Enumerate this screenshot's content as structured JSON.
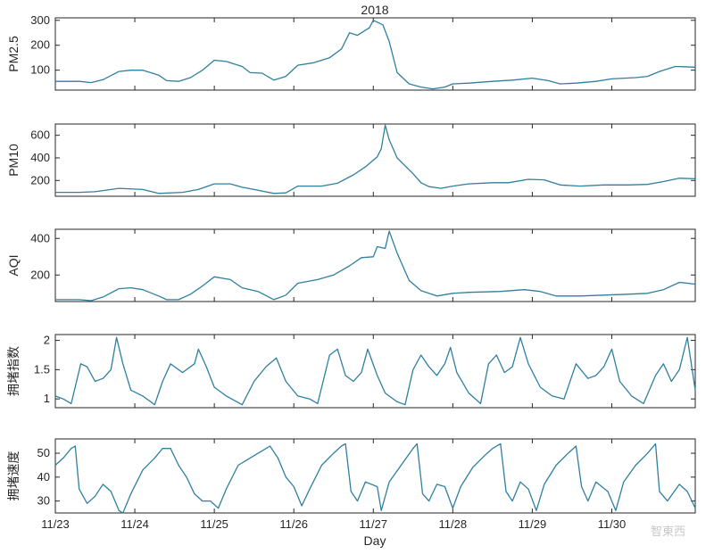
{
  "title": "2018",
  "xlabel": "Day",
  "watermark": "智東西",
  "colors": {
    "line": "#2f7f9f",
    "axis": "#262626"
  },
  "chart_data": {
    "type": "line",
    "x_unit": "day",
    "xlim": [
      0,
      8.05
    ],
    "x_ticks": [
      {
        "value": 0,
        "label": "11/23"
      },
      {
        "value": 1,
        "label": "11/24"
      },
      {
        "value": 2,
        "label": "11/25"
      },
      {
        "value": 3,
        "label": "11/26"
      },
      {
        "value": 4,
        "label": "11/27"
      },
      {
        "value": 5,
        "label": "11/28"
      },
      {
        "value": 6,
        "label": "11/29"
      },
      {
        "value": 7,
        "label": "11/30"
      }
    ],
    "panels": [
      {
        "ylabel": "PM2.5",
        "ylim": [
          20,
          310
        ],
        "yticks": [
          {
            "value": 100,
            "label": "100"
          },
          {
            "value": 200,
            "label": "200"
          },
          {
            "value": 300,
            "label": "300"
          }
        ],
        "points": [
          [
            0,
            55
          ],
          [
            0.3,
            55
          ],
          [
            0.45,
            50
          ],
          [
            0.6,
            62
          ],
          [
            0.8,
            95
          ],
          [
            0.95,
            100
          ],
          [
            1.1,
            100
          ],
          [
            1.3,
            80
          ],
          [
            1.4,
            58
          ],
          [
            1.55,
            55
          ],
          [
            1.7,
            70
          ],
          [
            1.85,
            100
          ],
          [
            2.0,
            140
          ],
          [
            2.15,
            135
          ],
          [
            2.35,
            115
          ],
          [
            2.45,
            90
          ],
          [
            2.6,
            88
          ],
          [
            2.75,
            60
          ],
          [
            2.9,
            75
          ],
          [
            3.05,
            120
          ],
          [
            3.25,
            130
          ],
          [
            3.45,
            150
          ],
          [
            3.6,
            185
          ],
          [
            3.7,
            250
          ],
          [
            3.8,
            240
          ],
          [
            3.95,
            270
          ],
          [
            4.0,
            300
          ],
          [
            4.12,
            282
          ],
          [
            4.2,
            215
          ],
          [
            4.3,
            90
          ],
          [
            4.45,
            45
          ],
          [
            4.6,
            32
          ],
          [
            4.75,
            25
          ],
          [
            4.9,
            32
          ],
          [
            5.0,
            45
          ],
          [
            5.2,
            48
          ],
          [
            5.5,
            55
          ],
          [
            5.75,
            60
          ],
          [
            6.0,
            68
          ],
          [
            6.2,
            58
          ],
          [
            6.35,
            45
          ],
          [
            6.55,
            48
          ],
          [
            6.8,
            55
          ],
          [
            7.0,
            65
          ],
          [
            7.3,
            70
          ],
          [
            7.45,
            75
          ],
          [
            7.6,
            95
          ],
          [
            7.8,
            115
          ],
          [
            8.05,
            112
          ]
        ]
      },
      {
        "ylabel": "PM10",
        "ylim": [
          60,
          700
        ],
        "yticks": [
          {
            "value": 200,
            "label": "200"
          },
          {
            "value": 400,
            "label": "400"
          },
          {
            "value": 600,
            "label": "600"
          }
        ],
        "points": [
          [
            0,
            95
          ],
          [
            0.3,
            95
          ],
          [
            0.5,
            100
          ],
          [
            0.8,
            130
          ],
          [
            1.1,
            120
          ],
          [
            1.3,
            85
          ],
          [
            1.6,
            95
          ],
          [
            1.8,
            120
          ],
          [
            2.0,
            170
          ],
          [
            2.2,
            170
          ],
          [
            2.35,
            140
          ],
          [
            2.5,
            120
          ],
          [
            2.75,
            85
          ],
          [
            2.9,
            90
          ],
          [
            3.05,
            150
          ],
          [
            3.35,
            150
          ],
          [
            3.55,
            175
          ],
          [
            3.75,
            250
          ],
          [
            3.9,
            320
          ],
          [
            4.0,
            380
          ],
          [
            4.05,
            410
          ],
          [
            4.1,
            480
          ],
          [
            4.15,
            690
          ],
          [
            4.2,
            560
          ],
          [
            4.3,
            400
          ],
          [
            4.5,
            260
          ],
          [
            4.6,
            180
          ],
          [
            4.7,
            145
          ],
          [
            4.85,
            130
          ],
          [
            5.0,
            150
          ],
          [
            5.2,
            170
          ],
          [
            5.5,
            180
          ],
          [
            5.7,
            180
          ],
          [
            5.95,
            210
          ],
          [
            6.15,
            205
          ],
          [
            6.35,
            160
          ],
          [
            6.6,
            150
          ],
          [
            6.9,
            160
          ],
          [
            7.2,
            160
          ],
          [
            7.45,
            165
          ],
          [
            7.65,
            190
          ],
          [
            7.85,
            220
          ],
          [
            8.05,
            215
          ]
        ]
      },
      {
        "ylabel": "AQI",
        "ylim": [
          55,
          450
        ],
        "yticks": [
          {
            "value": 200,
            "label": "200"
          },
          {
            "value": 400,
            "label": "400"
          }
        ],
        "points": [
          [
            0,
            65
          ],
          [
            0.3,
            65
          ],
          [
            0.45,
            60
          ],
          [
            0.6,
            80
          ],
          [
            0.8,
            125
          ],
          [
            0.95,
            130
          ],
          [
            1.1,
            120
          ],
          [
            1.3,
            85
          ],
          [
            1.4,
            65
          ],
          [
            1.55,
            65
          ],
          [
            1.7,
            95
          ],
          [
            1.85,
            140
          ],
          [
            2.0,
            190
          ],
          [
            2.2,
            175
          ],
          [
            2.35,
            130
          ],
          [
            2.55,
            110
          ],
          [
            2.75,
            65
          ],
          [
            2.9,
            90
          ],
          [
            3.05,
            155
          ],
          [
            3.3,
            175
          ],
          [
            3.5,
            200
          ],
          [
            3.7,
            250
          ],
          [
            3.85,
            295
          ],
          [
            4.0,
            300
          ],
          [
            4.05,
            355
          ],
          [
            4.15,
            345
          ],
          [
            4.2,
            440
          ],
          [
            4.3,
            320
          ],
          [
            4.45,
            170
          ],
          [
            4.6,
            115
          ],
          [
            4.8,
            85
          ],
          [
            5.0,
            100
          ],
          [
            5.2,
            105
          ],
          [
            5.6,
            110
          ],
          [
            5.9,
            120
          ],
          [
            6.1,
            110
          ],
          [
            6.3,
            85
          ],
          [
            6.6,
            85
          ],
          [
            6.9,
            90
          ],
          [
            7.2,
            95
          ],
          [
            7.45,
            100
          ],
          [
            7.65,
            120
          ],
          [
            7.85,
            160
          ],
          [
            8.05,
            150
          ]
        ]
      },
      {
        "ylabel": "拥堵指数",
        "ylim": [
          0.85,
          2.1
        ],
        "yticks": [
          {
            "value": 1,
            "label": "1"
          },
          {
            "value": 1.5,
            "label": "1.5"
          },
          {
            "value": 2,
            "label": "2"
          }
        ],
        "points": [
          [
            0,
            1.05
          ],
          [
            0.1,
            1.0
          ],
          [
            0.2,
            0.92
          ],
          [
            0.32,
            1.6
          ],
          [
            0.4,
            1.55
          ],
          [
            0.5,
            1.3
          ],
          [
            0.6,
            1.35
          ],
          [
            0.7,
            1.5
          ],
          [
            0.77,
            2.05
          ],
          [
            0.85,
            1.6
          ],
          [
            0.95,
            1.15
          ],
          [
            1.1,
            1.05
          ],
          [
            1.25,
            0.9
          ],
          [
            1.35,
            1.3
          ],
          [
            1.45,
            1.6
          ],
          [
            1.6,
            1.45
          ],
          [
            1.75,
            1.6
          ],
          [
            1.8,
            1.85
          ],
          [
            1.9,
            1.55
          ],
          [
            2.0,
            1.2
          ],
          [
            2.15,
            1.05
          ],
          [
            2.35,
            0.9
          ],
          [
            2.5,
            1.3
          ],
          [
            2.65,
            1.55
          ],
          [
            2.78,
            1.7
          ],
          [
            2.9,
            1.3
          ],
          [
            3.05,
            1.05
          ],
          [
            3.2,
            1.0
          ],
          [
            3.3,
            0.92
          ],
          [
            3.45,
            1.75
          ],
          [
            3.55,
            1.85
          ],
          [
            3.65,
            1.4
          ],
          [
            3.75,
            1.3
          ],
          [
            3.85,
            1.45
          ],
          [
            3.93,
            1.85
          ],
          [
            4.05,
            1.4
          ],
          [
            4.15,
            1.1
          ],
          [
            4.3,
            0.95
          ],
          [
            4.4,
            0.9
          ],
          [
            4.5,
            1.5
          ],
          [
            4.6,
            1.75
          ],
          [
            4.7,
            1.55
          ],
          [
            4.8,
            1.4
          ],
          [
            4.9,
            1.6
          ],
          [
            4.97,
            1.88
          ],
          [
            5.05,
            1.45
          ],
          [
            5.2,
            1.1
          ],
          [
            5.35,
            0.92
          ],
          [
            5.45,
            1.6
          ],
          [
            5.55,
            1.75
          ],
          [
            5.65,
            1.45
          ],
          [
            5.75,
            1.55
          ],
          [
            5.85,
            2.05
          ],
          [
            5.95,
            1.6
          ],
          [
            6.1,
            1.2
          ],
          [
            6.25,
            1.05
          ],
          [
            6.4,
            1.0
          ],
          [
            6.55,
            1.6
          ],
          [
            6.7,
            1.35
          ],
          [
            6.8,
            1.4
          ],
          [
            6.9,
            1.55
          ],
          [
            7.0,
            1.85
          ],
          [
            7.1,
            1.3
          ],
          [
            7.25,
            1.05
          ],
          [
            7.4,
            0.92
          ],
          [
            7.55,
            1.4
          ],
          [
            7.65,
            1.6
          ],
          [
            7.75,
            1.3
          ],
          [
            7.85,
            1.5
          ],
          [
            7.95,
            2.05
          ],
          [
            8.05,
            1.15
          ]
        ]
      },
      {
        "ylabel": "拥堵速度",
        "ylim": [
          25,
          56
        ],
        "yticks": [
          {
            "value": 30,
            "label": "30"
          },
          {
            "value": 40,
            "label": "40"
          },
          {
            "value": 50,
            "label": "50"
          }
        ],
        "points": [
          [
            0,
            45
          ],
          [
            0.1,
            48
          ],
          [
            0.2,
            52
          ],
          [
            0.25,
            53
          ],
          [
            0.3,
            35
          ],
          [
            0.4,
            29
          ],
          [
            0.5,
            32
          ],
          [
            0.6,
            37
          ],
          [
            0.7,
            34
          ],
          [
            0.8,
            26
          ],
          [
            0.85,
            25
          ],
          [
            0.95,
            33
          ],
          [
            1.1,
            43
          ],
          [
            1.25,
            48
          ],
          [
            1.35,
            52
          ],
          [
            1.45,
            52
          ],
          [
            1.55,
            45
          ],
          [
            1.65,
            40
          ],
          [
            1.75,
            33
          ],
          [
            1.85,
            30
          ],
          [
            1.95,
            30
          ],
          [
            2.05,
            27
          ],
          [
            2.15,
            35
          ],
          [
            2.3,
            45
          ],
          [
            2.45,
            48
          ],
          [
            2.6,
            51
          ],
          [
            2.7,
            53
          ],
          [
            2.8,
            48
          ],
          [
            2.9,
            40
          ],
          [
            3.0,
            36
          ],
          [
            3.1,
            28
          ],
          [
            3.2,
            35
          ],
          [
            3.35,
            45
          ],
          [
            3.5,
            50
          ],
          [
            3.6,
            53
          ],
          [
            3.65,
            54
          ],
          [
            3.72,
            34
          ],
          [
            3.8,
            30
          ],
          [
            3.9,
            38
          ],
          [
            4.05,
            36
          ],
          [
            4.1,
            26
          ],
          [
            4.2,
            38
          ],
          [
            4.35,
            45
          ],
          [
            4.5,
            52
          ],
          [
            4.55,
            54
          ],
          [
            4.62,
            33
          ],
          [
            4.7,
            30
          ],
          [
            4.8,
            37
          ],
          [
            4.9,
            36
          ],
          [
            5.0,
            27
          ],
          [
            5.1,
            36
          ],
          [
            5.25,
            44
          ],
          [
            5.4,
            49
          ],
          [
            5.5,
            52
          ],
          [
            5.6,
            54
          ],
          [
            5.67,
            34
          ],
          [
            5.75,
            30
          ],
          [
            5.85,
            38
          ],
          [
            5.95,
            35
          ],
          [
            6.05,
            26
          ],
          [
            6.15,
            37
          ],
          [
            6.3,
            45
          ],
          [
            6.45,
            50
          ],
          [
            6.55,
            53
          ],
          [
            6.62,
            36
          ],
          [
            6.7,
            30
          ],
          [
            6.8,
            38
          ],
          [
            6.95,
            34
          ],
          [
            7.05,
            26
          ],
          [
            7.15,
            38
          ],
          [
            7.3,
            45
          ],
          [
            7.45,
            50
          ],
          [
            7.55,
            54
          ],
          [
            7.6,
            34
          ],
          [
            7.7,
            30
          ],
          [
            7.85,
            37
          ],
          [
            7.95,
            34
          ],
          [
            8.05,
            27
          ]
        ]
      }
    ]
  }
}
